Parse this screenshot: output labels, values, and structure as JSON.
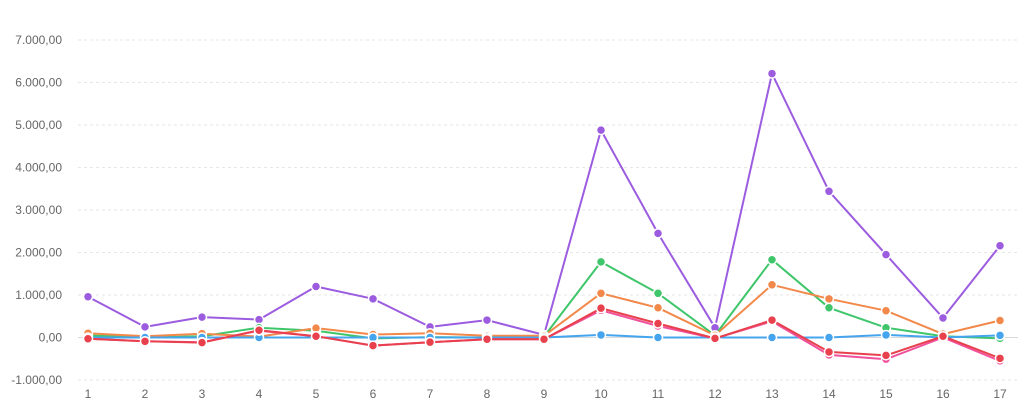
{
  "chart_data": {
    "type": "line",
    "x": [
      "1",
      "2",
      "3",
      "4",
      "5",
      "6",
      "7",
      "8",
      "9",
      "10",
      "11",
      "12",
      "13",
      "14",
      "15",
      "16",
      "17"
    ],
    "y_ticks": [
      "7.000,00",
      "6.000,00",
      "5.000,00",
      "4.000,00",
      "3.000,00",
      "2.000,00",
      "1.000,00",
      "0,00",
      "-1.000,00"
    ],
    "ylim": [
      -1000,
      7000
    ],
    "grid": true,
    "legend": "none",
    "series": [
      {
        "color": "#9c5ce0",
        "values": [
          960,
          250,
          480,
          420,
          1200,
          910,
          250,
          410,
          60,
          4880,
          2450,
          230,
          6210,
          3440,
          1950,
          460,
          2160
        ]
      },
      {
        "color": "#3fc66b",
        "values": [
          50,
          0,
          30,
          230,
          160,
          -20,
          10,
          0,
          20,
          1780,
          1040,
          50,
          1830,
          700,
          230,
          30,
          -20
        ]
      },
      {
        "color": "#f2884a",
        "values": [
          100,
          30,
          90,
          20,
          220,
          70,
          100,
          40,
          40,
          1040,
          700,
          50,
          1240,
          910,
          630,
          80,
          400
        ]
      },
      {
        "color": "#45a4ee",
        "values": [
          0,
          0,
          0,
          0,
          0,
          0,
          0,
          0,
          0,
          60,
          0,
          0,
          0,
          0,
          60,
          0,
          50
        ]
      },
      {
        "color": "#f0519b",
        "values": [
          -30,
          -90,
          -110,
          160,
          30,
          -190,
          -110,
          -40,
          -40,
          640,
          270,
          -20,
          380,
          -410,
          -510,
          0,
          -550
        ]
      },
      {
        "color": "#e8404c",
        "values": [
          -30,
          -90,
          -120,
          170,
          30,
          -190,
          -110,
          -40,
          -40,
          690,
          330,
          -20,
          410,
          -340,
          -420,
          30,
          -490
        ]
      }
    ]
  }
}
